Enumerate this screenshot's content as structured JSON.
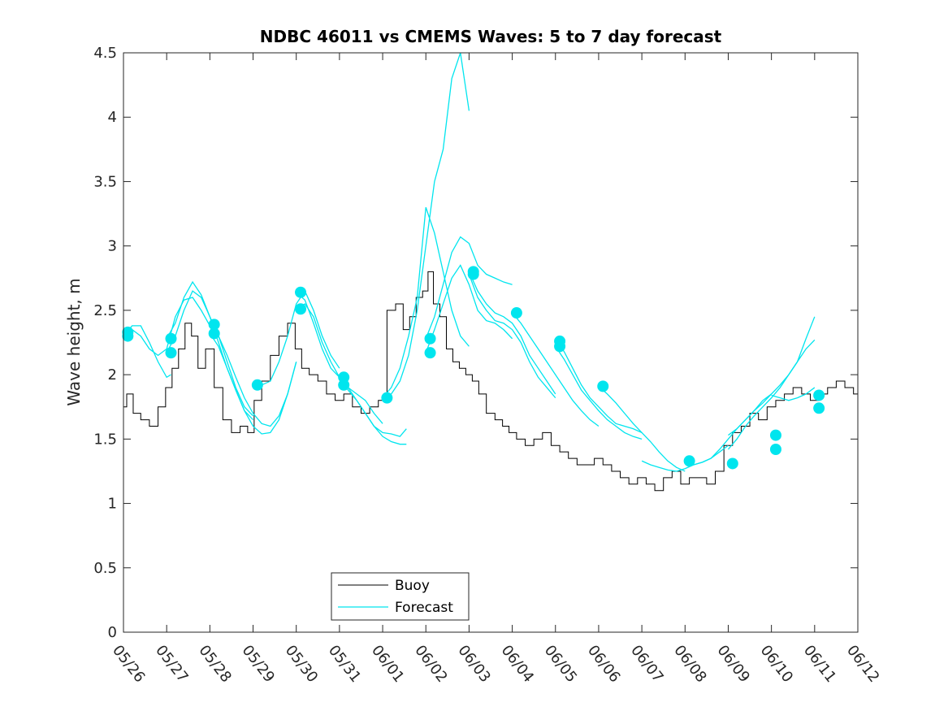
{
  "chart_data": {
    "type": "line",
    "title": "NDBC 46011 vs CMEMS Waves: 5 to 7 day forecast",
    "xlabel": "",
    "ylabel": "Wave height, m",
    "xlim": [
      "05/26",
      "06/12"
    ],
    "ylim": [
      0,
      4.5
    ],
    "x_unit": "days from 05/26",
    "x_ticks": [
      "05/26",
      "05/27",
      "05/28",
      "05/29",
      "05/30",
      "05/31",
      "06/01",
      "06/02",
      "06/03",
      "06/04",
      "06/05",
      "06/06",
      "06/07",
      "06/08",
      "06/09",
      "06/10",
      "06/11",
      "06/12"
    ],
    "y_ticks": [
      "0",
      "0.5",
      "1",
      "1.5",
      "2",
      "2.5",
      "3",
      "3.5",
      "4",
      "4.5"
    ],
    "grid": false,
    "legend_position": "bottom-left",
    "colors": {
      "buoy": "#000000",
      "forecast": "#00e5ee",
      "axis": "#262626"
    },
    "legend": [
      {
        "label": "Buoy",
        "color": "#000000"
      },
      {
        "label": "Forecast",
        "color": "#00e5ee"
      }
    ],
    "buoy": {
      "name": "Buoy",
      "x": [
        0,
        0.15,
        0.3,
        0.5,
        0.7,
        0.9,
        1.05,
        1.2,
        1.35,
        1.5,
        1.65,
        1.8,
        2.0,
        2.2,
        2.4,
        2.6,
        2.8,
        2.95,
        3.1,
        3.3,
        3.5,
        3.7,
        3.9,
        4.05,
        4.2,
        4.4,
        4.6,
        4.8,
        5.0,
        5.2,
        5.4,
        5.6,
        5.8,
        6.0,
        6.2,
        6.4,
        6.55,
        6.7,
        6.85,
        7.0,
        7.1,
        7.25,
        7.4,
        7.55,
        7.7,
        7.85,
        8.0,
        8.15,
        8.3,
        8.5,
        8.7,
        8.85,
        9.0,
        9.2,
        9.4,
        9.6,
        9.8,
        10.0,
        10.2,
        10.4,
        10.6,
        10.8,
        11.0,
        11.2,
        11.4,
        11.6,
        11.8,
        12.0,
        12.2,
        12.4,
        12.6,
        12.8,
        13.0,
        13.2,
        13.4,
        13.6,
        13.8,
        14.0,
        14.2,
        14.4,
        14.6,
        14.8,
        15.0,
        15.2,
        15.4,
        15.6,
        15.8,
        16.0,
        16.2,
        16.4,
        16.6,
        16.8,
        17.0
      ],
      "y": [
        1.75,
        1.85,
        1.7,
        1.65,
        1.6,
        1.75,
        1.9,
        2.05,
        2.2,
        2.4,
        2.3,
        2.05,
        2.2,
        1.9,
        1.65,
        1.55,
        1.6,
        1.55,
        1.8,
        1.95,
        2.15,
        2.3,
        2.4,
        2.2,
        2.05,
        2.0,
        1.95,
        1.85,
        1.8,
        1.85,
        1.75,
        1.7,
        1.75,
        1.8,
        2.5,
        2.55,
        2.35,
        2.45,
        2.6,
        2.65,
        2.8,
        2.55,
        2.45,
        2.2,
        2.1,
        2.05,
        2.0,
        1.95,
        1.85,
        1.7,
        1.65,
        1.6,
        1.55,
        1.5,
        1.45,
        1.5,
        1.55,
        1.45,
        1.4,
        1.35,
        1.3,
        1.3,
        1.35,
        1.3,
        1.25,
        1.2,
        1.15,
        1.2,
        1.15,
        1.1,
        1.2,
        1.25,
        1.15,
        1.2,
        1.2,
        1.15,
        1.25,
        1.45,
        1.55,
        1.6,
        1.7,
        1.65,
        1.75,
        1.8,
        1.85,
        1.9,
        1.85,
        1.8,
        1.85,
        1.9,
        1.95,
        1.9,
        1.85
      ]
    },
    "forecast_series": [
      {
        "x": [
          0,
          0.2,
          0.4,
          0.6,
          0.8,
          1.0,
          1.2,
          1.4,
          1.6,
          1.8,
          2.0
        ],
        "y": [
          2.32,
          2.35,
          2.3,
          2.2,
          2.15,
          2.2,
          2.45,
          2.58,
          2.6,
          2.5,
          2.38
        ]
      },
      {
        "x": [
          0,
          0.2,
          0.4,
          0.6,
          0.8,
          1.0,
          1.1
        ],
        "y": [
          2.3,
          2.38,
          2.38,
          2.25,
          2.1,
          1.98,
          2.0
        ]
      },
      {
        "x": [
          1.0,
          1.2,
          1.4,
          1.6,
          1.8,
          2.0,
          2.2,
          2.4,
          2.6,
          2.8,
          3.0
        ],
        "y": [
          2.28,
          2.4,
          2.6,
          2.72,
          2.62,
          2.45,
          2.3,
          2.1,
          1.9,
          1.75,
          1.68
        ]
      },
      {
        "x": [
          1.0,
          1.2,
          1.4,
          1.6,
          1.8,
          2.0,
          2.2,
          2.4,
          2.6,
          2.8,
          3.0
        ],
        "y": [
          2.17,
          2.3,
          2.5,
          2.65,
          2.6,
          2.45,
          2.25,
          2.05,
          1.88,
          1.72,
          1.65
        ]
      },
      {
        "x": [
          2.0,
          2.2,
          2.4,
          2.6,
          2.8,
          3.0,
          3.2,
          3.4,
          3.6,
          3.8,
          4.0
        ],
        "y": [
          2.39,
          2.3,
          2.15,
          1.98,
          1.82,
          1.7,
          1.62,
          1.6,
          1.68,
          1.85,
          2.1
        ]
      },
      {
        "x": [
          2.0,
          2.2,
          2.4,
          2.6,
          2.8,
          3.0,
          3.2,
          3.4,
          3.6,
          3.8,
          4.0
        ],
        "y": [
          2.32,
          2.22,
          2.05,
          1.88,
          1.72,
          1.6,
          1.54,
          1.55,
          1.65,
          1.85,
          2.1
        ]
      },
      {
        "x": [
          3.0,
          3.2,
          3.4,
          3.6,
          3.8,
          4.0,
          4.2,
          4.4,
          4.6,
          4.8,
          5.0
        ],
        "y": [
          1.92,
          1.92,
          1.95,
          2.1,
          2.3,
          2.55,
          2.65,
          2.5,
          2.3,
          2.15,
          2.05
        ]
      },
      {
        "x": [
          4.0,
          4.2,
          4.4,
          4.6,
          4.8,
          5.0,
          5.2,
          5.4,
          5.6,
          5.8,
          6.0
        ],
        "y": [
          2.64,
          2.58,
          2.4,
          2.2,
          2.05,
          1.98,
          1.9,
          1.85,
          1.8,
          1.7,
          1.62
        ]
      },
      {
        "x": [
          4.0,
          4.2,
          4.4,
          4.6,
          4.8,
          5.0,
          5.2,
          5.4,
          5.6,
          5.8,
          6.0,
          6.2,
          6.4,
          6.55
        ],
        "y": [
          2.51,
          2.55,
          2.45,
          2.25,
          2.1,
          1.98,
          1.88,
          1.8,
          1.7,
          1.6,
          1.55,
          1.54,
          1.52,
          1.58
        ]
      },
      {
        "x": [
          5.0,
          5.2,
          5.4,
          5.6,
          5.8,
          6.0,
          6.2,
          6.4,
          6.55
        ],
        "y": [
          1.98,
          1.9,
          1.8,
          1.7,
          1.6,
          1.52,
          1.48,
          1.46,
          1.46
        ]
      },
      {
        "x": [
          6.0,
          6.2,
          6.4,
          6.6,
          6.8,
          7.0,
          7.2,
          7.4,
          7.6,
          7.8,
          8.0
        ],
        "y": [
          1.82,
          1.85,
          1.95,
          2.15,
          2.5,
          3.0,
          3.5,
          3.75,
          4.3,
          4.5,
          4.05
        ]
      },
      {
        "x": [
          6.0,
          6.2,
          6.4,
          6.6,
          6.8,
          7.0,
          7.2,
          7.4,
          7.6,
          7.8,
          8.0
        ],
        "y": [
          1.82,
          1.9,
          2.05,
          2.3,
          2.6,
          3.3,
          3.1,
          2.8,
          2.5,
          2.3,
          2.22
        ]
      },
      {
        "x": [
          7.0,
          7.2,
          7.4,
          7.6,
          7.8,
          8.0,
          8.2,
          8.4,
          8.6,
          8.8,
          9.0
        ],
        "y": [
          2.28,
          2.45,
          2.7,
          2.95,
          3.07,
          3.02,
          2.85,
          2.78,
          2.75,
          2.72,
          2.7
        ]
      },
      {
        "x": [
          7.0,
          7.2,
          7.4,
          7.6,
          7.8,
          8.0,
          8.2,
          8.4,
          8.6,
          8.8,
          9.0
        ],
        "y": [
          2.17,
          2.35,
          2.55,
          2.75,
          2.85,
          2.7,
          2.5,
          2.42,
          2.4,
          2.35,
          2.28
        ]
      },
      {
        "x": [
          8.0,
          8.2,
          8.4,
          8.6,
          8.8,
          9.0,
          9.2,
          9.4,
          9.6,
          9.8,
          10.0
        ],
        "y": [
          2.8,
          2.65,
          2.55,
          2.48,
          2.45,
          2.4,
          2.3,
          2.15,
          2.05,
          1.95,
          1.85
        ]
      },
      {
        "x": [
          8.0,
          8.2,
          8.4,
          8.6,
          8.8,
          9.0,
          9.2,
          9.4,
          9.6,
          9.8,
          10.0
        ],
        "y": [
          2.78,
          2.6,
          2.5,
          2.42,
          2.4,
          2.35,
          2.25,
          2.1,
          1.98,
          1.9,
          1.82
        ]
      },
      {
        "x": [
          9.0,
          9.2,
          9.4,
          9.6,
          9.8,
          10.0,
          10.2,
          10.4,
          10.6,
          10.8,
          11.0
        ],
        "y": [
          2.48,
          2.4,
          2.3,
          2.2,
          2.1,
          2.0,
          1.9,
          1.8,
          1.72,
          1.65,
          1.6
        ]
      },
      {
        "x": [
          10.0,
          10.2,
          10.4,
          10.6,
          10.8,
          11.0,
          11.2,
          11.4,
          11.6,
          11.8,
          12.0
        ],
        "y": [
          2.26,
          2.18,
          2.05,
          1.92,
          1.82,
          1.75,
          1.68,
          1.62,
          1.6,
          1.58,
          1.55
        ]
      },
      {
        "x": [
          10.0,
          10.2,
          10.4,
          10.6,
          10.8,
          11.0,
          11.2,
          11.4,
          11.6,
          11.8,
          12.0
        ],
        "y": [
          2.22,
          2.12,
          2.0,
          1.88,
          1.8,
          1.72,
          1.65,
          1.6,
          1.55,
          1.52,
          1.5
        ]
      },
      {
        "x": [
          11.0,
          11.2,
          11.4,
          11.6,
          11.8,
          12.0,
          12.2,
          12.4,
          12.6,
          12.8,
          13.0
        ],
        "y": [
          1.91,
          1.85,
          1.78,
          1.7,
          1.62,
          1.55,
          1.48,
          1.4,
          1.33,
          1.28,
          1.25
        ]
      },
      {
        "x": [
          12.0,
          12.2,
          12.4,
          12.6,
          12.8,
          13.0,
          13.2,
          13.4,
          13.6,
          13.8,
          14.0
        ],
        "y": [
          1.33,
          1.3,
          1.28,
          1.26,
          1.25,
          1.27,
          1.3,
          1.32,
          1.35,
          1.4,
          1.45
        ]
      },
      {
        "x": [
          13.0,
          13.2,
          13.4,
          13.6,
          13.8,
          14.0,
          14.2,
          14.4,
          14.6,
          14.8,
          15.0
        ],
        "y": [
          1.31,
          1.3,
          1.32,
          1.35,
          1.42,
          1.5,
          1.58,
          1.65,
          1.72,
          1.8,
          1.85
        ]
      },
      {
        "x": [
          14.0,
          14.2,
          14.4,
          14.6,
          14.8,
          15.0,
          15.2,
          15.4,
          15.6,
          15.8,
          16.0
        ],
        "y": [
          1.42,
          1.5,
          1.6,
          1.68,
          1.75,
          1.82,
          1.9,
          2.0,
          2.1,
          2.28,
          2.45
        ]
      },
      {
        "x": [
          14.0,
          14.2,
          14.4,
          14.6,
          14.8,
          15.0,
          15.2,
          15.4,
          15.6,
          15.8,
          16.0
        ],
        "y": [
          1.53,
          1.58,
          1.65,
          1.72,
          1.78,
          1.85,
          1.92,
          2.0,
          2.1,
          2.2,
          2.27
        ]
      },
      {
        "x": [
          15.0,
          15.2,
          15.4,
          15.6,
          15.8,
          16.0
        ],
        "y": [
          1.84,
          1.82,
          1.8,
          1.82,
          1.85,
          1.9
        ]
      }
    ],
    "markers": {
      "name": "Forecast initial",
      "x": [
        0.1,
        0.1,
        1.1,
        1.1,
        2.1,
        2.1,
        3.1,
        4.1,
        4.1,
        5.1,
        5.1,
        6.1,
        7.1,
        7.1,
        8.1,
        8.1,
        9.1,
        10.1,
        10.1,
        11.1,
        13.1,
        14.1,
        15.1,
        15.1,
        16.1,
        16.1
      ],
      "y": [
        2.33,
        2.3,
        2.28,
        2.17,
        2.39,
        2.32,
        1.92,
        2.64,
        2.51,
        1.98,
        1.92,
        1.82,
        2.28,
        2.17,
        2.8,
        2.78,
        2.48,
        2.26,
        2.22,
        1.91,
        1.33,
        1.31,
        1.42,
        1.53,
        1.84,
        1.74
      ]
    }
  }
}
